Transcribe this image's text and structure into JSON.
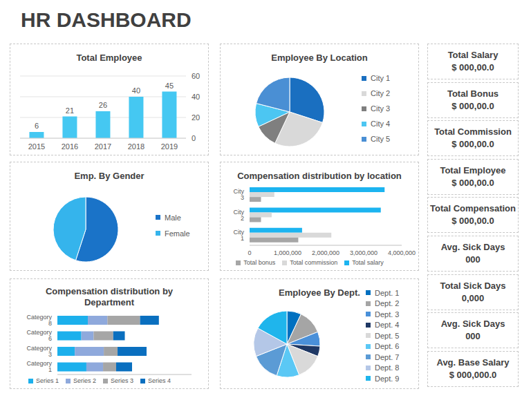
{
  "title": "HR DASHBOARD",
  "chart_data": [
    {
      "type": "bar",
      "title": "Total Employee",
      "categories": [
        "2015",
        "2016",
        "2017",
        "2018",
        "2019"
      ],
      "values": [
        6,
        21,
        26,
        40,
        45
      ],
      "color": "#45c8f2",
      "ylim": [
        0,
        60
      ],
      "yticks": [
        0,
        20,
        40,
        60
      ],
      "grid": true,
      "data_labels": true
    },
    {
      "type": "pie",
      "title": "Employee By Location",
      "categories": [
        "City 1",
        "City 2",
        "City 3",
        "City 4",
        "City 5"
      ],
      "values": [
        30,
        27,
        11,
        11,
        21
      ],
      "colors": [
        "#1a6fc0",
        "#d9d9d9",
        "#7f7f7f",
        "#4cc6f2",
        "#4a8fd4"
      ],
      "legend": "right"
    },
    {
      "type": "pie",
      "title": "Emp. By Gender",
      "categories": [
        "Male",
        "Female"
      ],
      "values": [
        55,
        45
      ],
      "colors": [
        "#1a73c8",
        "#35b4ec"
      ],
      "legend": "right"
    },
    {
      "type": "bar",
      "title": "Compensation distribution by location",
      "orientation": "horizontal",
      "categories": [
        "City 1",
        "City 2",
        "City 3"
      ],
      "series": [
        {
          "name": "Total salary",
          "color": "#1cb4f0",
          "values": [
            1380000,
            3450000,
            3550000
          ]
        },
        {
          "name": "Total commission",
          "color": "#d9d9d9",
          "values": [
            2150000,
            580000,
            650000
          ]
        },
        {
          "name": "Total bonus",
          "color": "#a6a6a6",
          "values": [
            1280000,
            300000,
            300000
          ]
        }
      ],
      "xlim": [
        0,
        4000000
      ],
      "xticks": [
        0,
        {
          "value": 1000000,
          "label": "1,000,000"
        },
        {
          "value": 2000000,
          "label": "2,000,000"
        },
        {
          "value": 3000000,
          "label": "3,000,000"
        },
        {
          "value": 4000000,
          "label": "4,000,000"
        }
      ],
      "legend": "bottom"
    },
    {
      "type": "bar",
      "title": "Compensation distribution by Department",
      "orientation": "horizontal",
      "stacked": true,
      "categories": [
        "Category 1",
        "Category 3",
        "Category 6",
        "Category 8"
      ],
      "series": [
        {
          "name": "Series 1",
          "color": "#1cb0ec",
          "values": [
            4.0,
            2.4,
            3.3,
            4.2
          ]
        },
        {
          "name": "Series 2",
          "color": "#8fa9dc",
          "values": [
            2.3,
            4.0,
            1.7,
            2.7
          ]
        },
        {
          "name": "Series 3",
          "color": "#a6a6a6",
          "values": [
            1.8,
            1.9,
            2.7,
            4.5
          ]
        },
        {
          "name": "Series 4",
          "color": "#0a6fbf",
          "values": [
            2.2,
            4.0,
            1.6,
            2.6
          ]
        }
      ],
      "xlim": [
        0,
        18.5
      ],
      "tick_labels": "y",
      "legend": "bottom"
    },
    {
      "type": "pie",
      "title": "Employee By Dept.",
      "categories": [
        "Dept. 1",
        "Dept. 2",
        "Dept. 3",
        "Dept. 4",
        "Dept. 5",
        "Dept. 6",
        "Dept. 7",
        "Dept. 8",
        "Dept. 9"
      ],
      "values": [
        7,
        12,
        7,
        5,
        13,
        11,
        14,
        14,
        17
      ],
      "colors": [
        "#0070c0",
        "#a5a5a5",
        "#4a90d9",
        "#1f3864",
        "#d9d9d9",
        "#5bc8f5",
        "#5b9bd5",
        "#b4c7e7",
        "#1fb5ec"
      ],
      "legend": "right"
    }
  ],
  "kpis": [
    {
      "label": "Total Salary",
      "value": "$ 000,00.0"
    },
    {
      "label": "Total Bonus",
      "value": "$ 000,00.0"
    },
    {
      "label": "Total Commission",
      "value": "$ 000,00.0"
    },
    {
      "label": "Total Employee",
      "value": "$ 000,00.0"
    },
    {
      "label": "Total Compensation",
      "value": "$ 000,00.0"
    },
    {
      "label": "Avg. Sick Days",
      "value": "000"
    },
    {
      "label": "Total Sick Days",
      "value": "0,000"
    },
    {
      "label": "Avg. Sick Days",
      "value": "000"
    },
    {
      "label": "Avg. Base Salary",
      "value": "$ 000,000.0"
    }
  ]
}
